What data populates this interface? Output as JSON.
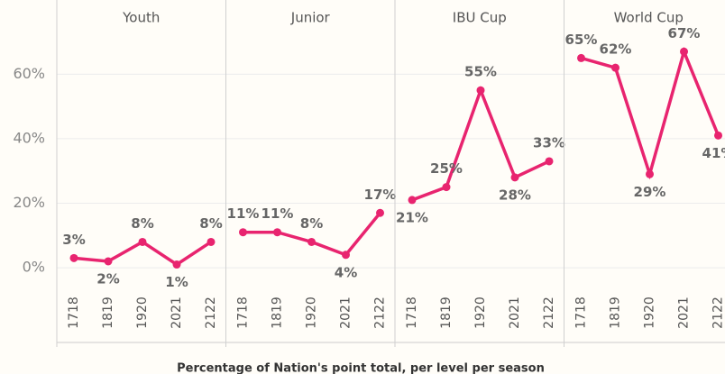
{
  "chart_data": {
    "type": "line",
    "title": "Percentage of Nation's point total, per level per season",
    "color": "#e8246f",
    "categories": [
      "1718",
      "1819",
      "1920",
      "2021",
      "2122"
    ],
    "ylim": [
      -5,
      83
    ],
    "yticks": [
      {
        "value": 0,
        "label": "0%"
      },
      {
        "value": 20,
        "label": "20%"
      },
      {
        "value": 40,
        "label": "40%"
      },
      {
        "value": 60,
        "label": "60%"
      }
    ],
    "grid": true,
    "panels": [
      {
        "name": "Youth",
        "values": [
          3,
          2,
          8,
          1,
          8
        ],
        "value_labels": [
          "3%",
          "2%",
          "8%",
          "1%",
          "8%"
        ]
      },
      {
        "name": "Junior",
        "values": [
          11,
          11,
          8,
          4,
          17
        ],
        "value_labels": [
          "11%",
          "11%",
          "8%",
          "4%",
          "17%"
        ]
      },
      {
        "name": "IBU Cup",
        "values": [
          21,
          25,
          55,
          28,
          33
        ],
        "value_labels": [
          "21%",
          "25%",
          "55%",
          "28%",
          "33%"
        ]
      },
      {
        "name": "World Cup",
        "values": [
          65,
          62,
          29,
          67,
          41
        ],
        "value_labels": [
          "65%",
          "62%",
          "29%",
          "67%",
          "41%"
        ]
      }
    ]
  }
}
